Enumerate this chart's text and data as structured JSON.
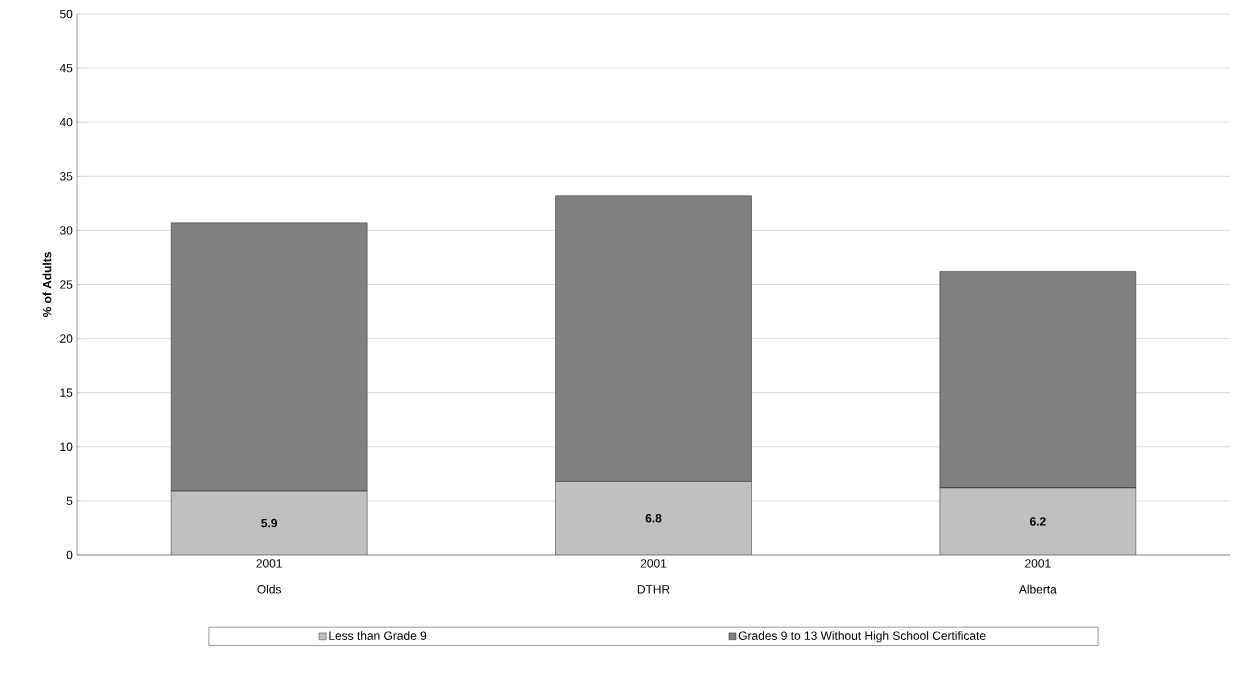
{
  "chart_data": {
    "type": "bar",
    "stacked": true,
    "ylabel": "% of Adults",
    "categories": [
      "2001 Olds",
      "2001 DTHR",
      "2001 Alberta"
    ],
    "series": [
      {
        "name": "Less than Grade 9",
        "color": "#c0c0c0",
        "values": [
          5.9,
          6.8,
          6.2
        ],
        "value_labels": [
          "5.9",
          "6.8",
          "6.2"
        ]
      },
      {
        "name": "Grades 9 to 13 Without High School Certificate",
        "color": "#808080",
        "values": [
          24.8,
          26.4,
          20.0
        ]
      }
    ],
    "ylim": [
      0,
      50
    ],
    "yticks": [
      0,
      5,
      10,
      15,
      20,
      25,
      30,
      35,
      40,
      45,
      50
    ],
    "grid": "y",
    "legend": "bottom"
  }
}
